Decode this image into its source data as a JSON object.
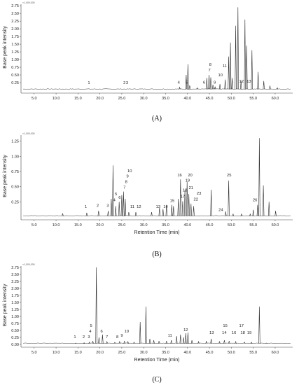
{
  "panels": [
    {
      "id": "A",
      "caption": "(A)",
      "corner_label": "×1,000,000",
      "ylabel": "Base peak intensity",
      "xlabel": "",
      "ylim": [
        0,
        2.8
      ],
      "yticks": [
        "0.25",
        "0.50",
        "0.75",
        "1.00",
        "1.25",
        "1.50",
        "1.75",
        "2.00",
        "2.25",
        "2.50",
        "2.75"
      ],
      "xlim": [
        2,
        64
      ],
      "xticks": [
        "5.0",
        "10.0",
        "15.0",
        "20.0",
        "25.0",
        "30.0",
        "35.0",
        "40.0",
        "45.0",
        "50.0",
        "55.0",
        "60.0"
      ],
      "peaks": [
        {
          "x": 38.2,
          "y": 0.1
        },
        {
          "x": 39.7,
          "y": 0.5
        },
        {
          "x": 40.1,
          "y": 0.85
        },
        {
          "x": 40.5,
          "y": 0.16
        },
        {
          "x": 42.2,
          "y": 0.08
        },
        {
          "x": 44.4,
          "y": 0.4
        },
        {
          "x": 44.9,
          "y": 0.5
        },
        {
          "x": 45.3,
          "y": 0.42
        },
        {
          "x": 45.8,
          "y": 0.18
        },
        {
          "x": 46.3,
          "y": 0.12
        },
        {
          "x": 47.4,
          "y": 0.2
        },
        {
          "x": 48.6,
          "y": 0.35
        },
        {
          "x": 49.4,
          "y": 1.1
        },
        {
          "x": 49.8,
          "y": 1.55
        },
        {
          "x": 50.2,
          "y": 0.4
        },
        {
          "x": 51.0,
          "y": 2.1
        },
        {
          "x": 51.5,
          "y": 2.7
        },
        {
          "x": 52.2,
          "y": 0.3
        },
        {
          "x": 53.1,
          "y": 2.3
        },
        {
          "x": 53.5,
          "y": 1.45
        },
        {
          "x": 54.7,
          "y": 1.3
        },
        {
          "x": 56.1,
          "y": 0.6
        },
        {
          "x": 57.4,
          "y": 0.3
        },
        {
          "x": 58.8,
          "y": 0.15
        },
        {
          "x": 60.5,
          "y": 0.08
        }
      ],
      "labels": [
        {
          "text": "1",
          "x": 17.5,
          "y": 0.2
        },
        {
          "text": "2",
          "x": 25.6,
          "y": 0.2
        },
        {
          "text": "3",
          "x": 26.2,
          "y": 0.2
        },
        {
          "text": "4",
          "x": 38.0,
          "y": 0.22
        },
        {
          "text": "5",
          "x": 39.8,
          "y": 0.22
        },
        {
          "text": "6",
          "x": 43.8,
          "y": 0.22
        },
        {
          "text": "7",
          "x": 45.0,
          "y": 0.62
        },
        {
          "text": "8",
          "x": 45.2,
          "y": 0.8
        },
        {
          "text": "9",
          "x": 46.2,
          "y": 0.22
        },
        {
          "text": "10",
          "x": 47.5,
          "y": 0.45
        },
        {
          "text": "11",
          "x": 48.5,
          "y": 0.75
        },
        {
          "text": "12",
          "x": 52.3,
          "y": 0.25
        },
        {
          "text": "13",
          "x": 54.0,
          "y": 0.25
        }
      ]
    },
    {
      "id": "B",
      "caption": "(B)",
      "corner_label": "×1,000,000",
      "ylabel": "Base peak intensity",
      "xlabel": "Retention Time (min)",
      "ylim": [
        0,
        1.35
      ],
      "yticks": [
        "0.25",
        "0.50",
        "0.75",
        "1.00",
        "1.25"
      ],
      "xlim": [
        2,
        64
      ],
      "xticks": [
        "5.0",
        "10.0",
        "15.0",
        "20.0",
        "25.0",
        "30.0",
        "35.0",
        "40.0",
        "45.0",
        "50.0",
        "55.0",
        "60.0"
      ],
      "peaks": [
        {
          "x": 11.5,
          "y": 0.06
        },
        {
          "x": 17.0,
          "y": 0.07
        },
        {
          "x": 19.7,
          "y": 0.1
        },
        {
          "x": 21.9,
          "y": 0.1
        },
        {
          "x": 22.6,
          "y": 0.3
        },
        {
          "x": 23.0,
          "y": 0.85
        },
        {
          "x": 23.6,
          "y": 0.18
        },
        {
          "x": 24.4,
          "y": 0.25
        },
        {
          "x": 25.0,
          "y": 0.36
        },
        {
          "x": 25.4,
          "y": 0.42
        },
        {
          "x": 25.8,
          "y": 0.3
        },
        {
          "x": 26.6,
          "y": 0.08
        },
        {
          "x": 28.2,
          "y": 0.08
        },
        {
          "x": 31.8,
          "y": 0.08
        },
        {
          "x": 33.6,
          "y": 0.15
        },
        {
          "x": 34.4,
          "y": 0.13
        },
        {
          "x": 35.2,
          "y": 0.2
        },
        {
          "x": 36.4,
          "y": 0.2
        },
        {
          "x": 36.8,
          "y": 0.18
        },
        {
          "x": 37.9,
          "y": 0.3
        },
        {
          "x": 38.4,
          "y": 0.62
        },
        {
          "x": 38.9,
          "y": 0.26
        },
        {
          "x": 39.4,
          "y": 0.45
        },
        {
          "x": 39.9,
          "y": 0.58
        },
        {
          "x": 40.3,
          "y": 0.38
        },
        {
          "x": 40.8,
          "y": 0.22
        },
        {
          "x": 41.4,
          "y": 0.18
        },
        {
          "x": 45.4,
          "y": 0.45
        },
        {
          "x": 48.7,
          "y": 0.09
        },
        {
          "x": 49.4,
          "y": 0.6
        },
        {
          "x": 50.4,
          "y": 0.05
        },
        {
          "x": 52.3,
          "y": 0.05
        },
        {
          "x": 54.3,
          "y": 0.05
        },
        {
          "x": 55.0,
          "y": 0.12
        },
        {
          "x": 56.0,
          "y": 0.2
        },
        {
          "x": 56.4,
          "y": 1.3
        },
        {
          "x": 57.3,
          "y": 0.52
        },
        {
          "x": 58.6,
          "y": 0.25
        },
        {
          "x": 60.1,
          "y": 0.1
        }
      ],
      "labels": [
        {
          "text": "1",
          "x": 16.8,
          "y": 0.15
        },
        {
          "text": "2",
          "x": 19.5,
          "y": 0.17
        },
        {
          "text": "3",
          "x": 21.8,
          "y": 0.17
        },
        {
          "text": "4",
          "x": 23.3,
          "y": 0.26
        },
        {
          "text": "5",
          "x": 23.7,
          "y": 0.36
        },
        {
          "text": "6",
          "x": 24.5,
          "y": 0.3
        },
        {
          "text": "7",
          "x": 25.6,
          "y": 0.47
        },
        {
          "text": "8",
          "x": 26.0,
          "y": 0.56
        },
        {
          "text": "9",
          "x": 26.3,
          "y": 0.65
        },
        {
          "text": "10",
          "x": 26.8,
          "y": 0.74
        },
        {
          "text": "11",
          "x": 27.4,
          "y": 0.15
        },
        {
          "text": "12",
          "x": 28.9,
          "y": 0.15
        },
        {
          "text": "13",
          "x": 33.3,
          "y": 0.15
        },
        {
          "text": "14",
          "x": 35.0,
          "y": 0.15
        },
        {
          "text": "15",
          "x": 36.5,
          "y": 0.25
        },
        {
          "text": "16",
          "x": 38.2,
          "y": 0.67
        },
        {
          "text": "17",
          "x": 38.9,
          "y": 0.32
        },
        {
          "text": "18",
          "x": 39.4,
          "y": 0.42
        },
        {
          "text": "19",
          "x": 40.0,
          "y": 0.58
        },
        {
          "text": "20",
          "x": 40.6,
          "y": 0.67
        },
        {
          "text": "21",
          "x": 40.8,
          "y": 0.46
        },
        {
          "text": "22",
          "x": 41.9,
          "y": 0.27
        },
        {
          "text": "23",
          "x": 42.6,
          "y": 0.37
        },
        {
          "text": "24",
          "x": 47.6,
          "y": 0.1
        },
        {
          "text": "25",
          "x": 49.5,
          "y": 0.67
        },
        {
          "text": "26",
          "x": 55.4,
          "y": 0.26
        }
      ]
    },
    {
      "id": "C",
      "caption": "(C)",
      "corner_label": "×1,000,000",
      "ylabel": "Base peak intensity",
      "xlabel": "Retention Time (min)",
      "ylim": [
        0,
        2.8
      ],
      "yticks": [
        "0.00",
        "0.25",
        "0.50",
        "0.75",
        "1.00",
        "1.25",
        "1.50",
        "1.75",
        "2.00",
        "2.25",
        "2.50",
        "2.75"
      ],
      "xlim": [
        2,
        64
      ],
      "xticks": [
        "5.0",
        "10.0",
        "15.0",
        "20.0",
        "25.0",
        "30.0",
        "35.0",
        "40.0",
        "45.0",
        "50.0",
        "55.0",
        "60.0"
      ],
      "peaks": [
        {
          "x": 14.5,
          "y": 0.05
        },
        {
          "x": 16.4,
          "y": 0.06
        },
        {
          "x": 17.6,
          "y": 0.08
        },
        {
          "x": 18.4,
          "y": 0.12
        },
        {
          "x": 19.2,
          "y": 2.75
        },
        {
          "x": 19.8,
          "y": 0.25
        },
        {
          "x": 20.6,
          "y": 0.35
        },
        {
          "x": 21.6,
          "y": 0.1
        },
        {
          "x": 23.4,
          "y": 0.07
        },
        {
          "x": 24.5,
          "y": 0.1
        },
        {
          "x": 25.6,
          "y": 0.12
        },
        {
          "x": 26.4,
          "y": 0.1
        },
        {
          "x": 27.8,
          "y": 0.08
        },
        {
          "x": 29.2,
          "y": 0.8
        },
        {
          "x": 30.5,
          "y": 1.35
        },
        {
          "x": 31.4,
          "y": 0.2
        },
        {
          "x": 32.3,
          "y": 0.15
        },
        {
          "x": 33.5,
          "y": 0.12
        },
        {
          "x": 35.2,
          "y": 0.12
        },
        {
          "x": 36.3,
          "y": 0.15
        },
        {
          "x": 37.5,
          "y": 0.3
        },
        {
          "x": 38.4,
          "y": 0.35
        },
        {
          "x": 39.1,
          "y": 0.25
        },
        {
          "x": 39.6,
          "y": 0.4
        },
        {
          "x": 40.1,
          "y": 0.42
        },
        {
          "x": 41.0,
          "y": 0.15
        },
        {
          "x": 42.5,
          "y": 0.1
        },
        {
          "x": 44.3,
          "y": 0.12
        },
        {
          "x": 45.4,
          "y": 0.2
        },
        {
          "x": 47.3,
          "y": 0.1
        },
        {
          "x": 48.4,
          "y": 0.15
        },
        {
          "x": 49.5,
          "y": 0.12
        },
        {
          "x": 51.0,
          "y": 0.1
        },
        {
          "x": 53.0,
          "y": 0.08
        },
        {
          "x": 54.6,
          "y": 0.08
        },
        {
          "x": 56.4,
          "y": 1.35
        },
        {
          "x": 58.0,
          "y": 0.05
        }
      ],
      "labels": [
        {
          "text": "1",
          "x": 14.3,
          "y": 0.22
        },
        {
          "text": "2",
          "x": 16.3,
          "y": 0.22
        },
        {
          "text": "3",
          "x": 17.5,
          "y": 0.22
        },
        {
          "text": "4",
          "x": 17.8,
          "y": 0.42
        },
        {
          "text": "5",
          "x": 18.0,
          "y": 0.62
        },
        {
          "text": "6",
          "x": 20.4,
          "y": 0.42
        },
        {
          "text": "7",
          "x": 21.6,
          "y": 0.22
        },
        {
          "text": "8",
          "x": 24.0,
          "y": 0.22
        },
        {
          "text": "9",
          "x": 25.0,
          "y": 0.27
        },
        {
          "text": "10",
          "x": 26.1,
          "y": 0.42
        },
        {
          "text": "11",
          "x": 36.0,
          "y": 0.27
        },
        {
          "text": "12",
          "x": 39.6,
          "y": 0.47
        },
        {
          "text": "13",
          "x": 45.5,
          "y": 0.37
        },
        {
          "text": "14",
          "x": 48.4,
          "y": 0.37
        },
        {
          "text": "15",
          "x": 48.6,
          "y": 0.62
        },
        {
          "text": "16",
          "x": 50.6,
          "y": 0.37
        },
        {
          "text": "17",
          "x": 52.3,
          "y": 0.62
        },
        {
          "text": "18",
          "x": 52.6,
          "y": 0.37
        },
        {
          "text": "19",
          "x": 54.1,
          "y": 0.37
        }
      ]
    }
  ],
  "chart_data": [
    {
      "type": "line",
      "title": "",
      "xlabel": "",
      "ylabel": "Base peak intensity",
      "xlim": [
        2,
        64
      ],
      "ylim": [
        0,
        2.8
      ],
      "grid": false
    },
    {
      "type": "line",
      "title": "",
      "xlabel": "Retention Time (min)",
      "ylabel": "Base peak intensity",
      "xlim": [
        2,
        64
      ],
      "ylim": [
        0,
        1.35
      ],
      "grid": false
    },
    {
      "type": "line",
      "title": "",
      "xlabel": "Retention Time (min)",
      "ylabel": "Base peak intensity",
      "xlim": [
        2,
        64
      ],
      "ylim": [
        0,
        2.8
      ],
      "grid": false
    }
  ],
  "colors": {
    "trace": "#2e2e2e",
    "axis": "#444444"
  }
}
